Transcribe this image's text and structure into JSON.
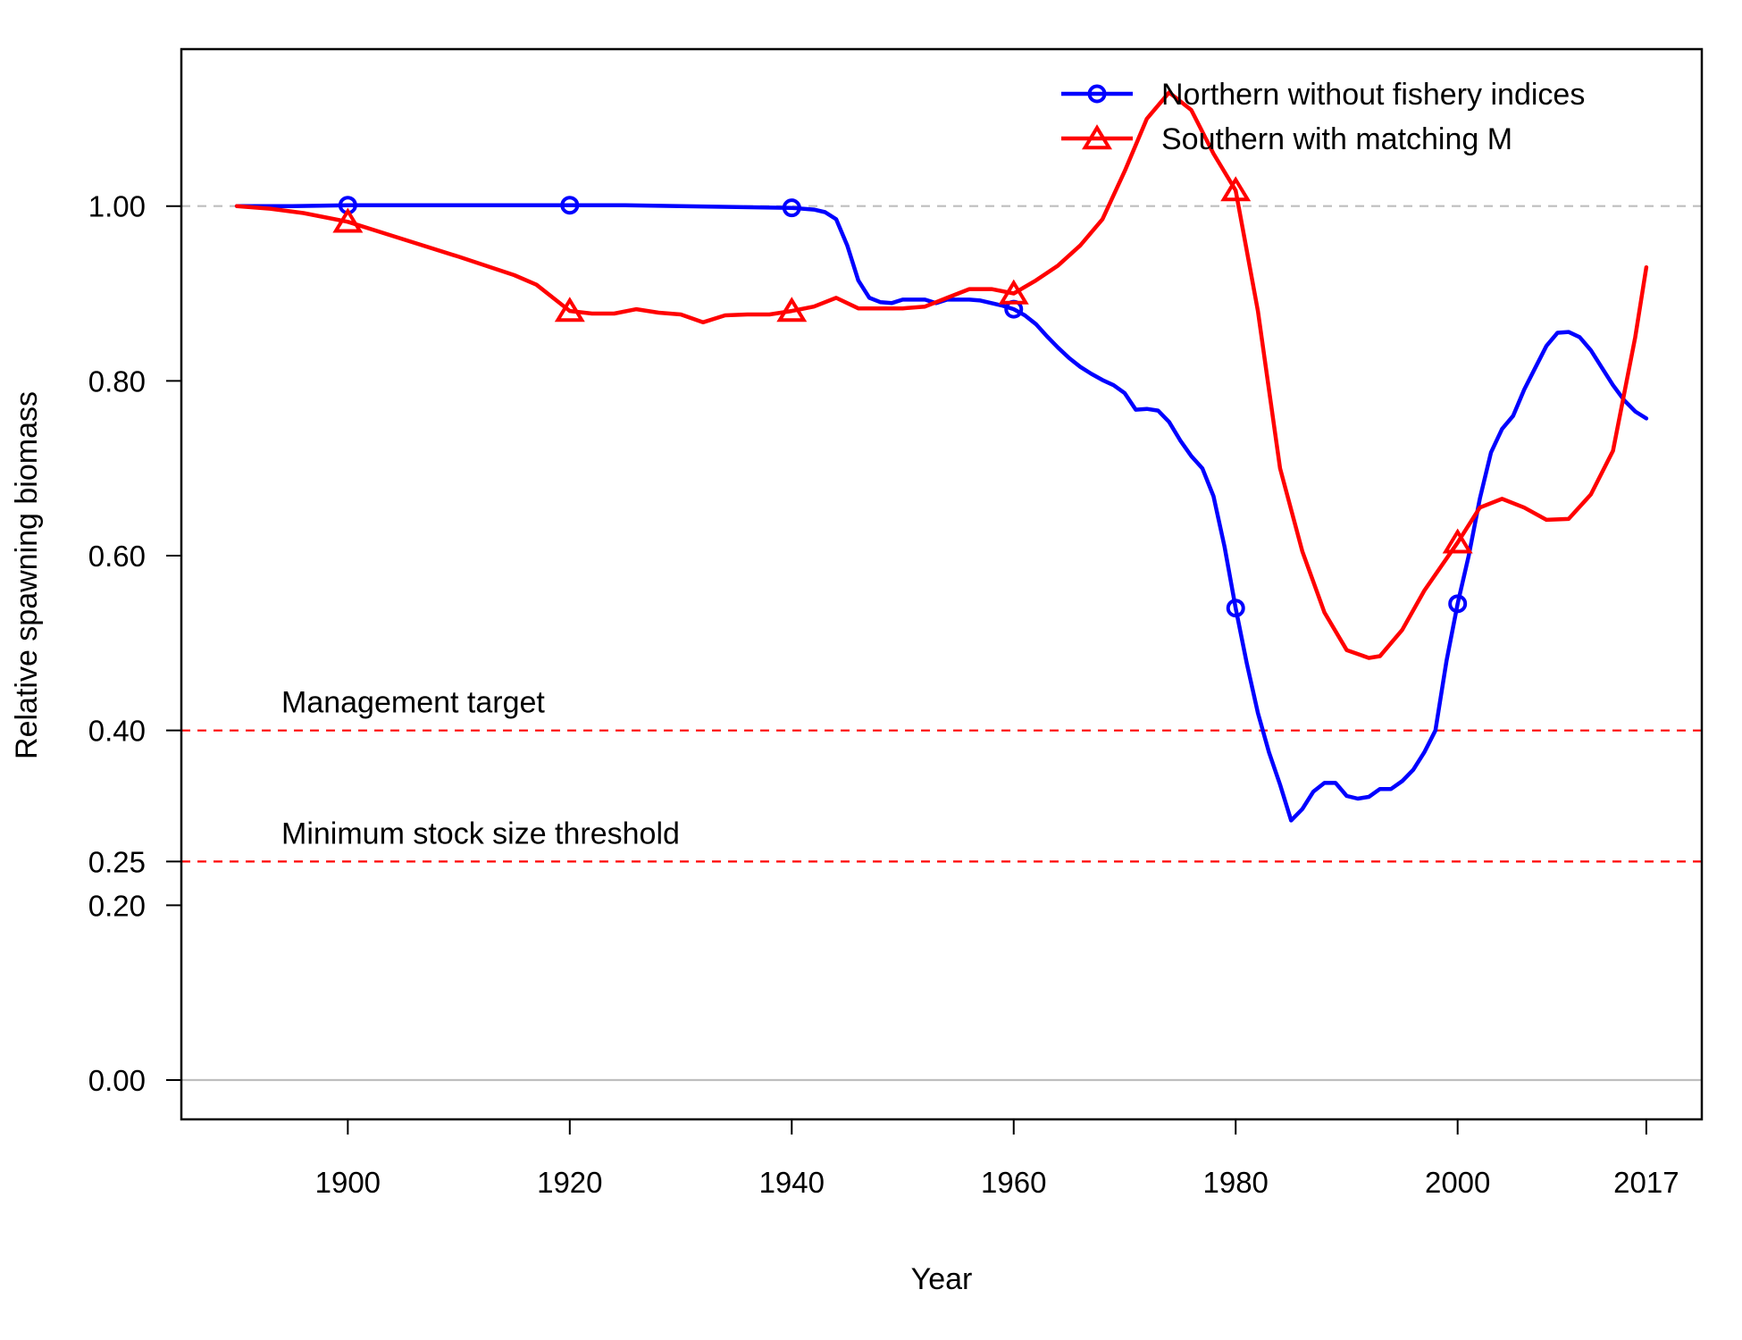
{
  "chart_data": {
    "type": "line",
    "xlabel": "Year",
    "ylabel": "Relative spawning biomass",
    "xlim": [
      1885,
      2022
    ],
    "ylim": [
      -0.045,
      1.1796
    ],
    "x_ticks": [
      1900,
      1920,
      1940,
      1960,
      1980,
      2000,
      2017
    ],
    "y_ticks": [
      "0.00",
      "0.20",
      "0.25",
      "0.40",
      "0.60",
      "0.80",
      "1.00"
    ],
    "legend_position": "top-right",
    "reference_lines": [
      {
        "y": 1.0,
        "style": "dashed",
        "color": "#bebebe",
        "label": ""
      },
      {
        "y": 0.0,
        "style": "solid",
        "color": "#bebebe",
        "label": ""
      },
      {
        "y": 0.4,
        "style": "dashed",
        "color": "#ff0000",
        "label": "Management target"
      },
      {
        "y": 0.25,
        "style": "dashed",
        "color": "#ff0000",
        "label": "Minimum stock size threshold"
      }
    ],
    "series": [
      {
        "name": "Northern without fishery indices",
        "color": "#0000ff",
        "marker": "circle",
        "marker_years": [
          1900,
          1920,
          1940,
          1960,
          1980,
          2000
        ],
        "x": [
          1890,
          1895,
          1900,
          1905,
          1910,
          1915,
          1920,
          1925,
          1930,
          1935,
          1940,
          1942,
          1943,
          1944,
          1945,
          1946,
          1947,
          1948,
          1949,
          1950,
          1951,
          1952,
          1953,
          1954,
          1955,
          1956,
          1957,
          1958,
          1959,
          1960,
          1961,
          1962,
          1963,
          1964,
          1965,
          1966,
          1967,
          1968,
          1969,
          1970,
          1971,
          1972,
          1973,
          1974,
          1975,
          1976,
          1977,
          1978,
          1979,
          1980,
          1981,
          1982,
          1983,
          1984,
          1985,
          1986,
          1987,
          1988,
          1989,
          1990,
          1991,
          1992,
          1993,
          1994,
          1995,
          1996,
          1997,
          1998,
          1999,
          2000,
          2001,
          2002,
          2003,
          2004,
          2005,
          2006,
          2007,
          2008,
          2009,
          2010,
          2011,
          2012,
          2013,
          2014,
          2015,
          2016,
          2017
        ],
        "y": [
          1.0,
          1.0,
          1.001,
          1.001,
          1.001,
          1.001,
          1.001,
          1.001,
          1.0,
          0.999,
          0.998,
          0.996,
          0.993,
          0.985,
          0.955,
          0.915,
          0.895,
          0.89,
          0.889,
          0.893,
          0.893,
          0.893,
          0.889,
          0.893,
          0.893,
          0.893,
          0.892,
          0.889,
          0.886,
          0.882,
          0.875,
          0.865,
          0.851,
          0.838,
          0.826,
          0.816,
          0.808,
          0.801,
          0.795,
          0.786,
          0.767,
          0.768,
          0.766,
          0.753,
          0.732,
          0.714,
          0.7,
          0.668,
          0.61,
          0.54,
          0.477,
          0.42,
          0.375,
          0.338,
          0.297,
          0.31,
          0.33,
          0.34,
          0.34,
          0.325,
          0.322,
          0.324,
          0.333,
          0.333,
          0.342,
          0.355,
          0.375,
          0.4,
          0.48,
          0.545,
          0.6,
          0.665,
          0.718,
          0.745,
          0.76,
          0.79,
          0.815,
          0.84,
          0.855,
          0.856,
          0.85,
          0.835,
          0.815,
          0.795,
          0.778,
          0.765,
          0.757
        ]
      },
      {
        "name": "Southern with matching M",
        "color": "#ff0000",
        "marker": "triangle",
        "marker_years": [
          1900,
          1920,
          1940,
          1960,
          1980,
          2000
        ],
        "x": [
          1890,
          1893,
          1896,
          1900,
          1905,
          1910,
          1915,
          1917,
          1920,
          1922,
          1924,
          1926,
          1928,
          1930,
          1932,
          1934,
          1936,
          1938,
          1940,
          1942,
          1944,
          1946,
          1948,
          1950,
          1952,
          1954,
          1956,
          1958,
          1960,
          1962,
          1964,
          1966,
          1968,
          1970,
          1972,
          1974,
          1976,
          1978,
          1980,
          1982,
          1984,
          1986,
          1988,
          1990,
          1992,
          1993,
          1995,
          1997,
          2000,
          2002,
          2004,
          2006,
          2008,
          2010,
          2012,
          2014,
          2016,
          2017
        ],
        "y": [
          1.0,
          0.997,
          0.992,
          0.982,
          0.962,
          0.942,
          0.921,
          0.91,
          0.88,
          0.877,
          0.877,
          0.882,
          0.878,
          0.876,
          0.867,
          0.875,
          0.876,
          0.876,
          0.88,
          0.885,
          0.895,
          0.883,
          0.883,
          0.883,
          0.885,
          0.895,
          0.905,
          0.905,
          0.9,
          0.915,
          0.932,
          0.955,
          0.985,
          1.04,
          1.1,
          1.13,
          1.11,
          1.06,
          1.018,
          0.88,
          0.7,
          0.605,
          0.535,
          0.492,
          0.483,
          0.485,
          0.515,
          0.56,
          0.615,
          0.655,
          0.665,
          0.655,
          0.641,
          0.642,
          0.67,
          0.72,
          0.85,
          0.93
        ]
      }
    ]
  }
}
